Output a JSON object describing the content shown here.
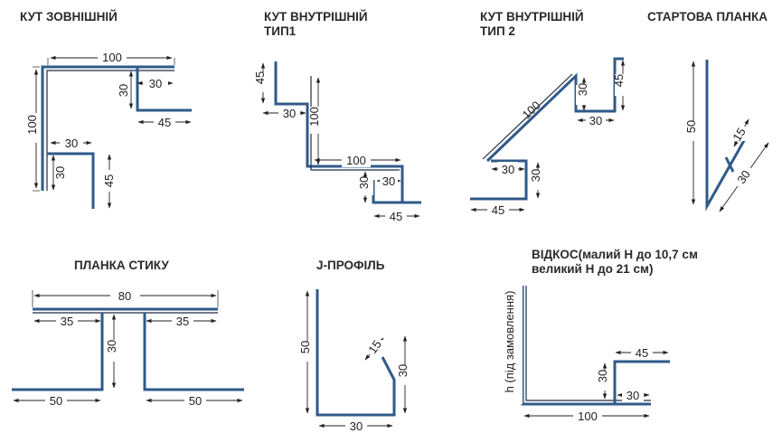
{
  "titles": {
    "kut_zovn": "КУТ ЗОВНІШНІЙ",
    "kut_vnutr1_l1": "КУТ ВНУТРІШНІЙ",
    "kut_vnutr1_l2": "ТИП1",
    "kut_vnutr2_l1": "КУТ ВНУТРІШНІЙ",
    "kut_vnutr2_l2": "ТИП 2",
    "startova": "СТАРТОВА ПЛАНКА",
    "planka_styku": "ПЛАНКА СТИКУ",
    "j_profil": "J-ПРОФІЛЬ",
    "vidkos_l1": "ВІДКОС(малий Н до 10,7 см",
    "vidkos_l2": "великий Н до 21 см)"
  },
  "dims": {
    "d100": "100",
    "d30": "30",
    "d45": "45",
    "d50": "50",
    "d15": "15",
    "d80": "80",
    "d35": "35",
    "h_note": "h (під замовлення)"
  },
  "colors": {
    "profile": "#2f5a8a",
    "dimension": "#222222"
  }
}
